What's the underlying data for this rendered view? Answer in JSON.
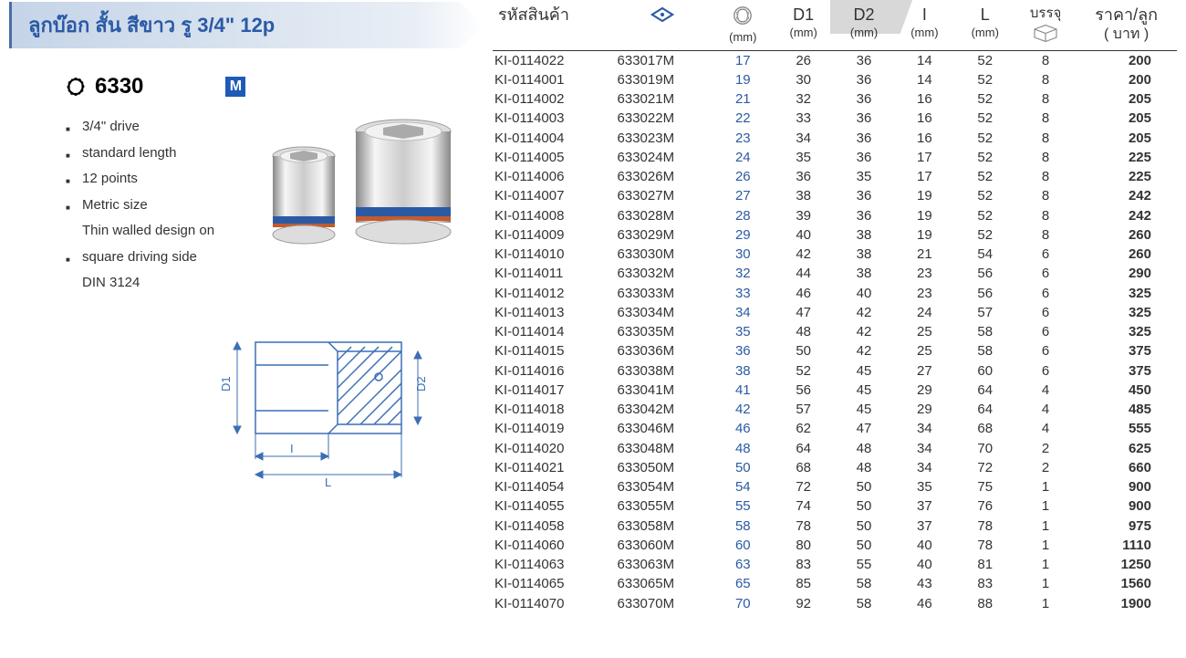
{
  "title": "ลูกบ๊อก สั้น สีขาว รู 3/4\" 12p",
  "model_number": "6330",
  "m_badge": "M",
  "features": [
    {
      "text": "3/4\" drive",
      "bullet": true
    },
    {
      "text": "standard length",
      "bullet": true
    },
    {
      "text": "12 points",
      "bullet": true
    },
    {
      "text": "Metric size",
      "bullet": true
    },
    {
      "text": "Thin walled design on",
      "bullet": false
    },
    {
      "text": "square driving side",
      "bullet": true
    },
    {
      "text": "DIN 3124",
      "bullet": false
    }
  ],
  "tech_labels": {
    "d1": "D1",
    "d2": "D2",
    "I": "I",
    "L": "L"
  },
  "headers": {
    "sku": "รหัสสินค้า",
    "size_unit": "(mm)",
    "d1": "D1",
    "d1_unit": "(mm)",
    "d2": "D2",
    "d2_unit": "(mm)",
    "I": "I",
    "I_unit": "(mm)",
    "L": "L",
    "L_unit": "(mm)",
    "pack": "บรรจุ",
    "price": "ราคา/ลูก",
    "price_unit": "( บาท )"
  },
  "colors": {
    "title_text": "#2b5aa5",
    "size_text": "#2b5aa5",
    "brand_blue": "#1e5bb8",
    "drawing_blue": "#3b6fb5"
  },
  "rows": [
    {
      "sku": "KI-0114022",
      "part": "633017M",
      "size": "17",
      "d1": "26",
      "d2": "36",
      "I": "14",
      "L": "52",
      "pack": "8",
      "price": "200"
    },
    {
      "sku": "KI-0114001",
      "part": "633019M",
      "size": "19",
      "d1": "30",
      "d2": "36",
      "I": "14",
      "L": "52",
      "pack": "8",
      "price": "200"
    },
    {
      "sku": "KI-0114002",
      "part": "633021M",
      "size": "21",
      "d1": "32",
      "d2": "36",
      "I": "16",
      "L": "52",
      "pack": "8",
      "price": "205"
    },
    {
      "sku": "KI-0114003",
      "part": "633022M",
      "size": "22",
      "d1": "33",
      "d2": "36",
      "I": "16",
      "L": "52",
      "pack": "8",
      "price": "205"
    },
    {
      "sku": "KI-0114004",
      "part": "633023M",
      "size": "23",
      "d1": "34",
      "d2": "36",
      "I": "16",
      "L": "52",
      "pack": "8",
      "price": "205"
    },
    {
      "sku": "KI-0114005",
      "part": "633024M",
      "size": "24",
      "d1": "35",
      "d2": "36",
      "I": "17",
      "L": "52",
      "pack": "8",
      "price": "225"
    },
    {
      "sku": "KI-0114006",
      "part": "633026M",
      "size": "26",
      "d1": "36",
      "d2": "35",
      "I": "17",
      "L": "52",
      "pack": "8",
      "price": "225"
    },
    {
      "sku": "KI-0114007",
      "part": "633027M",
      "size": "27",
      "d1": "38",
      "d2": "36",
      "I": "19",
      "L": "52",
      "pack": "8",
      "price": "242"
    },
    {
      "sku": "KI-0114008",
      "part": "633028M",
      "size": "28",
      "d1": "39",
      "d2": "36",
      "I": "19",
      "L": "52",
      "pack": "8",
      "price": "242"
    },
    {
      "sku": "KI-0114009",
      "part": "633029M",
      "size": "29",
      "d1": "40",
      "d2": "38",
      "I": "19",
      "L": "52",
      "pack": "8",
      "price": "260"
    },
    {
      "sku": "KI-0114010",
      "part": "633030M",
      "size": "30",
      "d1": "42",
      "d2": "38",
      "I": "21",
      "L": "54",
      "pack": "6",
      "price": "260"
    },
    {
      "sku": "KI-0114011",
      "part": "633032M",
      "size": "32",
      "d1": "44",
      "d2": "38",
      "I": "23",
      "L": "56",
      "pack": "6",
      "price": "290"
    },
    {
      "sku": "KI-0114012",
      "part": "633033M",
      "size": "33",
      "d1": "46",
      "d2": "40",
      "I": "23",
      "L": "56",
      "pack": "6",
      "price": "325"
    },
    {
      "sku": "KI-0114013",
      "part": "633034M",
      "size": "34",
      "d1": "47",
      "d2": "42",
      "I": "24",
      "L": "57",
      "pack": "6",
      "price": "325"
    },
    {
      "sku": "KI-0114014",
      "part": "633035M",
      "size": "35",
      "d1": "48",
      "d2": "42",
      "I": "25",
      "L": "58",
      "pack": "6",
      "price": "325"
    },
    {
      "sku": "KI-0114015",
      "part": "633036M",
      "size": "36",
      "d1": "50",
      "d2": "42",
      "I": "25",
      "L": "58",
      "pack": "6",
      "price": "375"
    },
    {
      "sku": "KI-0114016",
      "part": "633038M",
      "size": "38",
      "d1": "52",
      "d2": "45",
      "I": "27",
      "L": "60",
      "pack": "6",
      "price": "375"
    },
    {
      "sku": "KI-0114017",
      "part": "633041M",
      "size": "41",
      "d1": "56",
      "d2": "45",
      "I": "29",
      "L": "64",
      "pack": "4",
      "price": "450"
    },
    {
      "sku": "KI-0114018",
      "part": "633042M",
      "size": "42",
      "d1": "57",
      "d2": "45",
      "I": "29",
      "L": "64",
      "pack": "4",
      "price": "485"
    },
    {
      "sku": "KI-0114019",
      "part": "633046M",
      "size": "46",
      "d1": "62",
      "d2": "47",
      "I": "34",
      "L": "68",
      "pack": "4",
      "price": "555"
    },
    {
      "sku": "KI-0114020",
      "part": "633048M",
      "size": "48",
      "d1": "64",
      "d2": "48",
      "I": "34",
      "L": "70",
      "pack": "2",
      "price": "625"
    },
    {
      "sku": "KI-0114021",
      "part": "633050M",
      "size": "50",
      "d1": "68",
      "d2": "48",
      "I": "34",
      "L": "72",
      "pack": "2",
      "price": "660"
    },
    {
      "sku": "KI-0114054",
      "part": "633054M",
      "size": "54",
      "d1": "72",
      "d2": "50",
      "I": "35",
      "L": "75",
      "pack": "1",
      "price": "900"
    },
    {
      "sku": "KI-0114055",
      "part": "633055M",
      "size": "55",
      "d1": "74",
      "d2": "50",
      "I": "37",
      "L": "76",
      "pack": "1",
      "price": "900"
    },
    {
      "sku": "KI-0114058",
      "part": "633058M",
      "size": "58",
      "d1": "78",
      "d2": "50",
      "I": "37",
      "L": "78",
      "pack": "1",
      "price": "975"
    },
    {
      "sku": "KI-0114060",
      "part": "633060M",
      "size": "60",
      "d1": "80",
      "d2": "50",
      "I": "40",
      "L": "78",
      "pack": "1",
      "price": "1110"
    },
    {
      "sku": "KI-0114063",
      "part": "633063M",
      "size": "63",
      "d1": "83",
      "d2": "55",
      "I": "40",
      "L": "81",
      "pack": "1",
      "price": "1250"
    },
    {
      "sku": "KI-0114065",
      "part": "633065M",
      "size": "65",
      "d1": "85",
      "d2": "58",
      "I": "43",
      "L": "83",
      "pack": "1",
      "price": "1560"
    },
    {
      "sku": "KI-0114070",
      "part": "633070M",
      "size": "70",
      "d1": "92",
      "d2": "58",
      "I": "46",
      "L": "88",
      "pack": "1",
      "price": "1900"
    }
  ]
}
